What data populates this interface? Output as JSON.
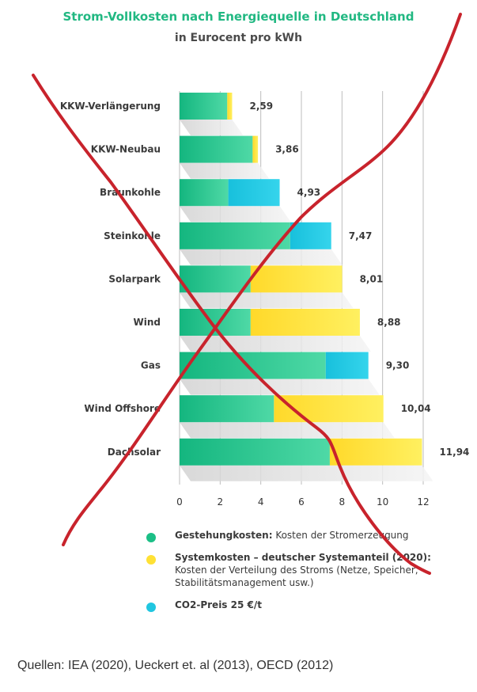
{
  "chart_data": {
    "type": "bar",
    "orientation": "horizontal",
    "stacked": true,
    "title": "Strom-Vollkosten nach Energiequelle in Deutschland",
    "subtitle": "in Eurocent pro kWh",
    "categories": [
      "KKW-Verlängerung",
      "KKW-Neubau",
      "Braunkohle",
      "Steinkohle",
      "Solarpark",
      "Wind",
      "Gas",
      "Wind Offshore",
      "Dachsolar"
    ],
    "totals": [
      "2,59",
      "3,86",
      "4,93",
      "7,47",
      "8,01",
      "8,88",
      "9,30",
      "10,04",
      "11,94"
    ],
    "series": [
      {
        "key": "gestehung",
        "color": "#1bbf86",
        "values": [
          2.35,
          3.6,
          2.4,
          5.45,
          3.5,
          3.5,
          7.2,
          4.65,
          7.4
        ]
      },
      {
        "key": "system",
        "color": "#ffe135",
        "values": [
          0.24,
          0.26,
          0,
          0,
          4.51,
          5.38,
          0,
          5.39,
          4.54
        ]
      },
      {
        "key": "co2",
        "color": "#20c6e0",
        "values": [
          0,
          0,
          2.53,
          2.02,
          0,
          0,
          2.1,
          0,
          0
        ]
      }
    ],
    "xlim": [
      0,
      12
    ],
    "xticks": [
      "0",
      "2",
      "4",
      "6",
      "8",
      "10",
      "12"
    ],
    "grid": true,
    "legend_position": "bottom"
  },
  "legend": [
    {
      "color": "#1bbf86",
      "title": "Gestehungkosten:",
      "text": " Kosten der Stromerzeugung"
    },
    {
      "color": "#ffe135",
      "title": "Systemkosten – deutscher Systemanteil (2020):",
      "text": " Kosten der Verteilung des Stroms (Netze, Speicher, Stabilitätsmanagement usw.)"
    },
    {
      "color": "#20c6e0",
      "title": "CO2-Preis 25 €/t",
      "text": ""
    }
  ],
  "sources": "Quellen: IEA (2020), Ueckert et. al (2013), OECD (2012)"
}
